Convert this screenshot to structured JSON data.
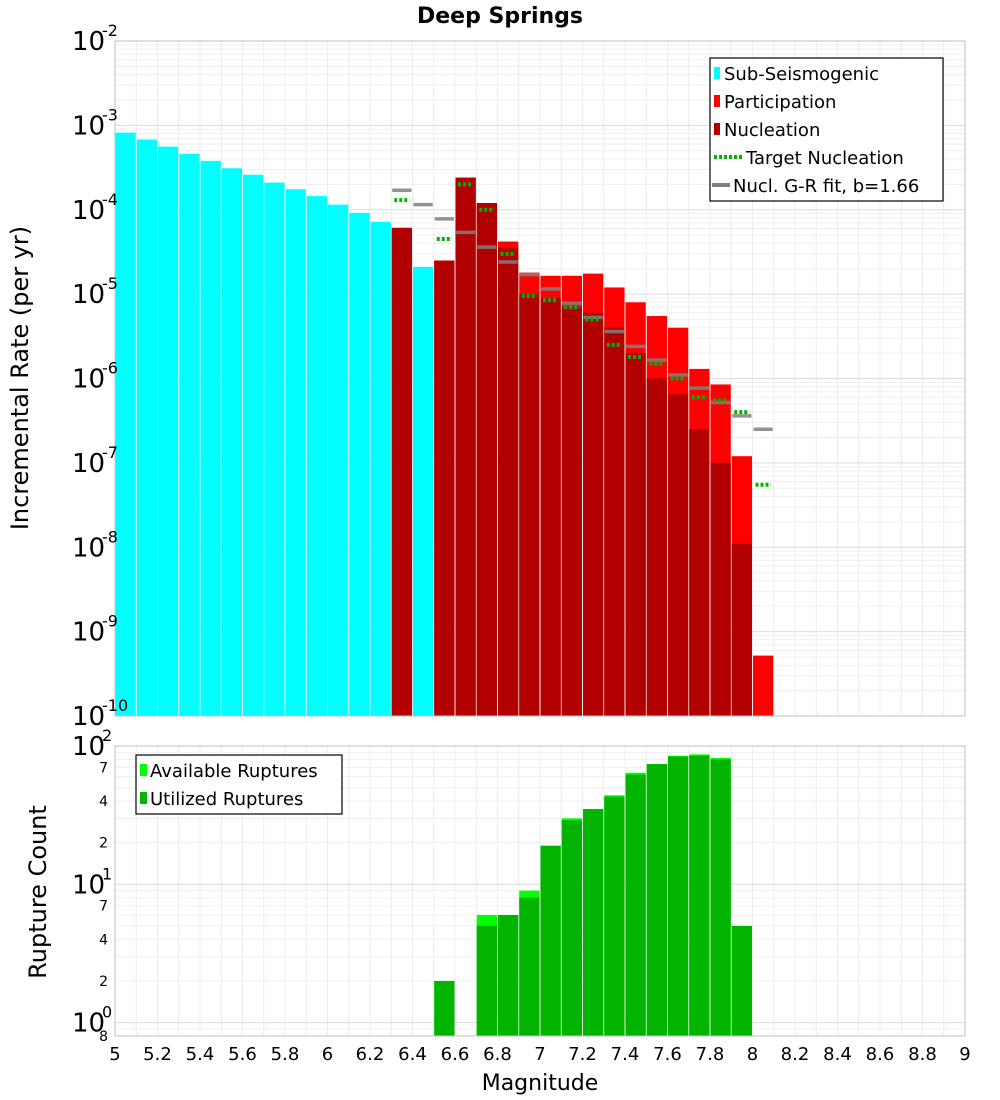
{
  "chart_data": [
    {
      "type": "bar",
      "title": "Deep Springs",
      "xlabel": "",
      "ylabel": "Incremental Rate (per yr)",
      "yscale": "log",
      "xlim": [
        5,
        9
      ],
      "ylim": [
        1e-10,
        0.01
      ],
      "bin_width": 0.1,
      "grid": true,
      "legend_position": "top-right",
      "legend": [
        "Sub-Seismogenic",
        "Participation",
        "Nucleation",
        "Target Nucleation",
        "Nucl. G-R fit, b=1.66"
      ],
      "colors": {
        "sub_seismogenic": "#00ffff",
        "participation": "#ff0000",
        "nucleation": "#b20000",
        "target": "#00b400",
        "gr_fit": "#808080"
      },
      "series": [
        {
          "name": "Sub-Seismogenic",
          "kind": "bar",
          "x": [
            5.05,
            5.15,
            5.25,
            5.35,
            5.45,
            5.55,
            5.65,
            5.75,
            5.85,
            5.95,
            6.05,
            6.15,
            6.25,
            6.35,
            6.45
          ],
          "values": [
            0.00082,
            0.00068,
            0.00056,
            0.00046,
            0.00038,
            0.00031,
            0.00026,
            0.00021,
            0.000175,
            0.000145,
            0.000115,
            9.2e-05,
            7.2e-05,
            6.1e-05,
            2.1e-05
          ]
        },
        {
          "name": "Participation",
          "kind": "bar",
          "x": [
            6.35,
            6.55,
            6.65,
            6.75,
            6.85,
            6.95,
            7.05,
            7.15,
            7.25,
            7.35,
            7.45,
            7.55,
            7.65,
            7.75,
            7.85,
            7.95,
            8.05
          ],
          "values": [
            6.1e-05,
            2.5e-05,
            0.00024,
            0.00012,
            4.2e-05,
            1.8e-05,
            1.65e-05,
            1.65e-05,
            1.75e-05,
            1.2e-05,
            8e-06,
            5.5e-06,
            4e-06,
            1.3e-06,
            8.5e-07,
            1.2e-07,
            5.2e-10
          ]
        },
        {
          "name": "Nucleation",
          "kind": "bar",
          "x": [
            6.35,
            6.55,
            6.65,
            6.75,
            6.85,
            6.95,
            7.05,
            7.15,
            7.25,
            7.35,
            7.45,
            7.55,
            7.65,
            7.75,
            7.85,
            7.95
          ],
          "values": [
            6.1e-05,
            2.5e-05,
            0.00024,
            0.00012,
            3.5e-05,
            1e-05,
            9e-06,
            7e-06,
            6e-06,
            4e-06,
            2e-06,
            1e-06,
            6.5e-07,
            2.5e-07,
            1e-07,
            1.1e-08
          ]
        },
        {
          "name": "Target Nucleation",
          "kind": "segment",
          "x": [
            6.35,
            6.55,
            6.65,
            6.75,
            6.85,
            6.95,
            7.05,
            7.15,
            7.25,
            7.35,
            7.45,
            7.55,
            7.65,
            7.75,
            7.85,
            7.95,
            8.05
          ],
          "values": [
            0.00013,
            4.5e-05,
            0.0002,
            0.0001,
            3e-05,
            9.5e-06,
            8.5e-06,
            7e-06,
            5e-06,
            2.5e-06,
            1.8e-06,
            1.5e-06,
            1e-06,
            6e-07,
            5.5e-07,
            4e-07,
            5.5e-08
          ]
        },
        {
          "name": "Nucl. G-R fit, b=1.66",
          "kind": "segment",
          "x": [
            6.35,
            6.45,
            6.55,
            6.65,
            6.75,
            6.85,
            6.95,
            7.05,
            7.15,
            7.25,
            7.35,
            7.45,
            7.55,
            7.65,
            7.75,
            7.85,
            7.95,
            8.05
          ],
          "values": [
            0.00017,
            0.000115,
            7.8e-05,
            5.4e-05,
            3.6e-05,
            2.4e-05,
            1.7e-05,
            1.15e-05,
            7.8e-06,
            5.3e-06,
            3.6e-06,
            2.4e-06,
            1.65e-06,
            1.1e-06,
            7.7e-07,
            5.2e-07,
            3.6e-07,
            2.5e-07
          ]
        }
      ],
      "x_ticks": [
        "5",
        "5.2",
        "5.4",
        "5.6",
        "5.8",
        "6",
        "6.2",
        "6.4",
        "6.6",
        "6.8",
        "7",
        "7.2",
        "7.4",
        "7.6",
        "7.8",
        "8",
        "8.2",
        "8.4",
        "8.6",
        "8.8",
        "9"
      ],
      "y_ticks": [
        {
          "base": "10",
          "exp": "-2"
        },
        {
          "base": "10",
          "exp": "-3"
        },
        {
          "base": "10",
          "exp": "-4"
        },
        {
          "base": "10",
          "exp": "-5"
        },
        {
          "base": "10",
          "exp": "-6"
        },
        {
          "base": "10",
          "exp": "-7"
        },
        {
          "base": "10",
          "exp": "-8"
        },
        {
          "base": "10",
          "exp": "-9"
        },
        {
          "base": "10",
          "exp": "-10"
        }
      ]
    },
    {
      "type": "bar",
      "title": "",
      "xlabel": "Magnitude",
      "ylabel": "Rupture Count",
      "yscale": "log",
      "xlim": [
        5,
        9
      ],
      "ylim": [
        0.8,
        100
      ],
      "bin_width": 0.1,
      "grid": true,
      "legend_position": "top-left",
      "legend": [
        "Available Ruptures",
        "Utilized Ruptures"
      ],
      "colors": {
        "available": "#00ff00",
        "utilized": "#00b400"
      },
      "series": [
        {
          "name": "Available Ruptures",
          "x": [
            6.55,
            6.75,
            6.85,
            6.95,
            7.05,
            7.15,
            7.25,
            7.35,
            7.45,
            7.55,
            7.65,
            7.75,
            7.85,
            7.95
          ],
          "values": [
            2,
            6,
            6,
            9,
            19,
            30,
            35,
            44,
            64,
            74,
            85,
            87,
            82,
            5
          ]
        },
        {
          "name": "Utilized Ruptures",
          "x": [
            6.55,
            6.75,
            6.85,
            6.95,
            7.05,
            7.15,
            7.25,
            7.35,
            7.45,
            7.55,
            7.65,
            7.75,
            7.85,
            7.95
          ],
          "values": [
            2,
            5,
            6,
            8,
            19,
            29,
            35,
            43,
            62,
            74,
            84,
            85,
            80,
            5
          ]
        }
      ],
      "x_ticks": [
        "5",
        "5.2",
        "5.4",
        "5.6",
        "5.8",
        "6",
        "6.2",
        "6.4",
        "6.6",
        "6.8",
        "7",
        "7.2",
        "7.4",
        "7.6",
        "7.8",
        "8",
        "8.2",
        "8.4",
        "8.6",
        "8.8",
        "9"
      ],
      "y_major_ticks": [
        {
          "base": "10",
          "exp": "2"
        },
        {
          "base": "10",
          "exp": "1"
        },
        {
          "base": "10",
          "exp": "0"
        }
      ],
      "y_minor_ticks": [
        {
          "value": 70,
          "label": "7"
        },
        {
          "value": 40,
          "label": "4"
        },
        {
          "value": 20,
          "label": "2"
        },
        {
          "value": 7,
          "label": "7"
        },
        {
          "value": 4,
          "label": "4"
        },
        {
          "value": 2,
          "label": "2"
        },
        {
          "value": 0.8,
          "label": "8"
        }
      ]
    }
  ]
}
